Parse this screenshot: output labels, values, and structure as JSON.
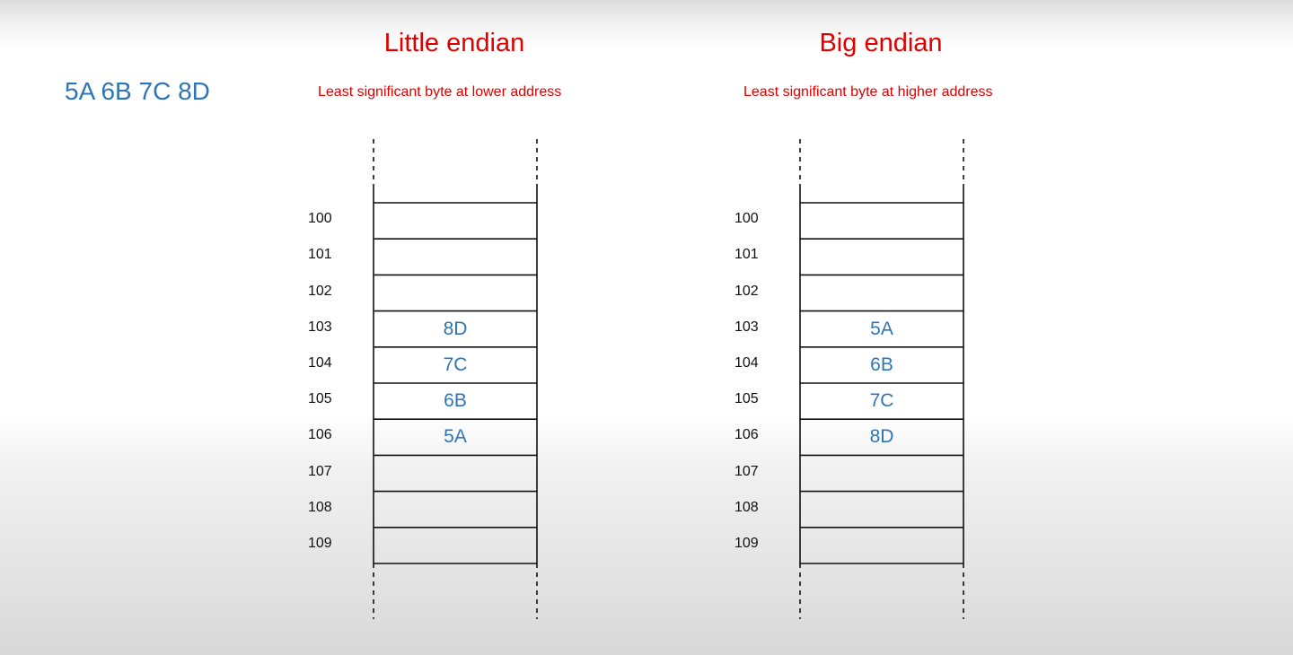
{
  "value_label": "5A 6B 7C 8D",
  "panels": [
    {
      "title": "Little endian",
      "subtitle": "Least significant byte at lower address",
      "addresses": [
        "100",
        "101",
        "102",
        "103",
        "104",
        "105",
        "106",
        "107",
        "108",
        "109"
      ],
      "bytes": [
        "",
        "",
        "",
        "8D",
        "7C",
        "6B",
        "5A",
        "",
        "",
        ""
      ]
    },
    {
      "title": "Big endian",
      "subtitle": "Least significant byte at higher address",
      "addresses": [
        "100",
        "101",
        "102",
        "103",
        "104",
        "105",
        "106",
        "107",
        "108",
        "109"
      ],
      "bytes": [
        "",
        "",
        "",
        "5A",
        "6B",
        "7C",
        "8D",
        "",
        "",
        ""
      ]
    }
  ],
  "colors": {
    "title": "#e00000",
    "bytes": "#2e75b6",
    "lines": "#111111"
  }
}
